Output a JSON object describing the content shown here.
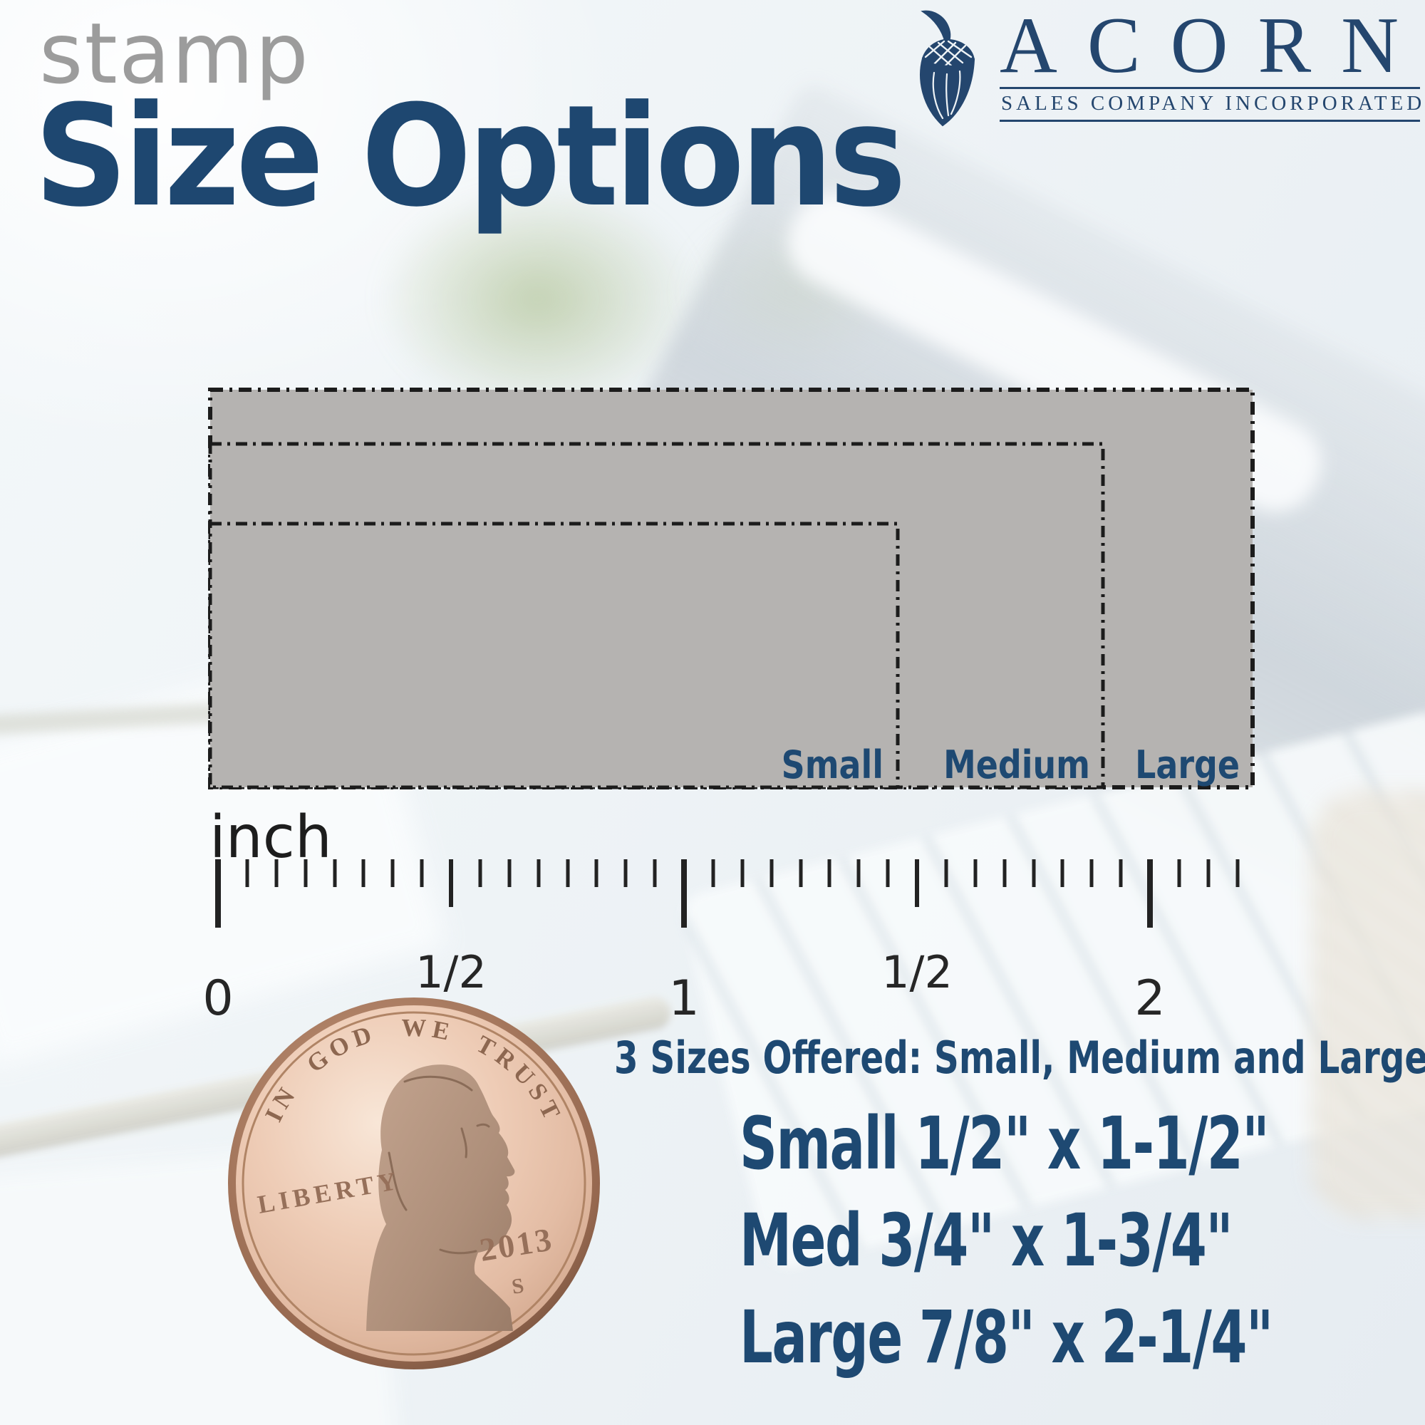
{
  "header": {
    "eyebrow": "stamp",
    "title": "Size Options"
  },
  "logo": {
    "name": "ACORN",
    "subtitle": "SALES COMPANY INCORPORATED",
    "color": "#24466e"
  },
  "size_diagram": {
    "fill_color": "#b5b3b1",
    "border_color": "#1c1c1c",
    "boxes": [
      {
        "label": "Small"
      },
      {
        "label": "Medium"
      },
      {
        "label": "Large"
      }
    ]
  },
  "ruler": {
    "unit": "inch",
    "ticks_per_inch": 16,
    "total_sixteenths": 35,
    "labels": [
      {
        "text": "0",
        "inch": 0
      },
      {
        "text": "1/2",
        "inch": 0.5
      },
      {
        "text": "1",
        "inch": 1
      },
      {
        "text": "1/2",
        "inch": 1.5
      },
      {
        "text": "2",
        "inch": 2
      }
    ]
  },
  "coin": {
    "motto": "IN GOD WE TRUST",
    "word": "LIBERTY",
    "year": "2013",
    "mint_mark": "S"
  },
  "offer": {
    "heading": "3 Sizes Offered:  Small, Medium and Large",
    "lines": [
      "Small 1/2\" x 1-1/2\"",
      "Med 3/4\" x 1-3/4\"",
      "Large 7/8\" x 2-1/4\""
    ]
  }
}
